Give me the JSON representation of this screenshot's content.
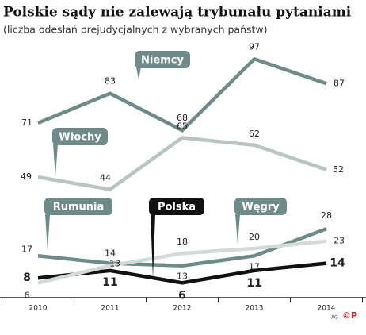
{
  "chart_data": {
    "type": "line",
    "title": "Polskie sądy nie zalewają trybunału pytaniami",
    "subtitle": "(liczba odesłań prejudycjalnych z wybranych państw)",
    "categories": [
      "2010",
      "2011",
      "2012",
      "2013",
      "2014"
    ],
    "series": [
      {
        "name": "Niemcy",
        "color": "#6f8b89",
        "values": [
          71,
          83,
          68,
          97,
          87
        ]
      },
      {
        "name": "Włochy",
        "color": "#b9c5c1",
        "values": [
          49,
          44,
          65,
          62,
          52
        ]
      },
      {
        "name": "Rumunia",
        "color": "#6f8b89",
        "values": [
          17,
          14,
          13,
          17,
          28
        ]
      },
      {
        "name": "Polska",
        "color": "#111111",
        "values": [
          8,
          11,
          6,
          11,
          14
        ]
      },
      {
        "name": "Węgry",
        "color": "#d3dad7",
        "values": [
          6,
          13,
          18,
          20,
          23
        ]
      }
    ],
    "ylim": [
      0,
      100
    ],
    "credit": "AG",
    "logo": "©P"
  }
}
